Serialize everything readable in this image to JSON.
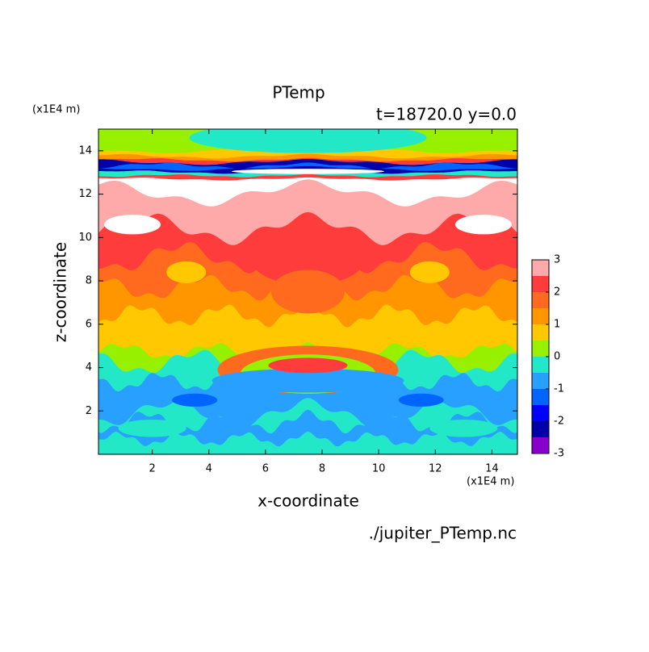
{
  "chart_data": {
    "type": "contour",
    "title": "PTemp",
    "subtitle": "t=18720.0 y=0.0",
    "x_label": "x-coordinate",
    "y_label": "z-coordinate",
    "x_unit": "(x1E4 m)",
    "y_unit": "(x1E4 m)",
    "source": "./jupiter_PTemp.nc",
    "xlim": [
      0.1,
      14.9
    ],
    "xticks": [
      2,
      4,
      6,
      8,
      10,
      12,
      14
    ],
    "ylim": [
      0,
      15
    ],
    "yticks": [
      2,
      4,
      6,
      8,
      10,
      12,
      14
    ],
    "levels": [
      -3,
      -2.5,
      -2,
      -1.5,
      -1,
      -0.5,
      0,
      0.5,
      1,
      1.5,
      2,
      2.5,
      3
    ],
    "colors": [
      "#8800cc",
      "#0000aa",
      "#0000ff",
      "#0064ff",
      "#28a0ff",
      "#22e8c8",
      "#96f000",
      "#ffc800",
      "#ff9600",
      "#ff6a1e",
      "#ff3c3c",
      "#ffaaaa"
    ],
    "over_color": "#ffffff",
    "colorbar_ticks": [
      -3,
      -2,
      -1,
      0,
      1,
      2,
      3
    ]
  }
}
